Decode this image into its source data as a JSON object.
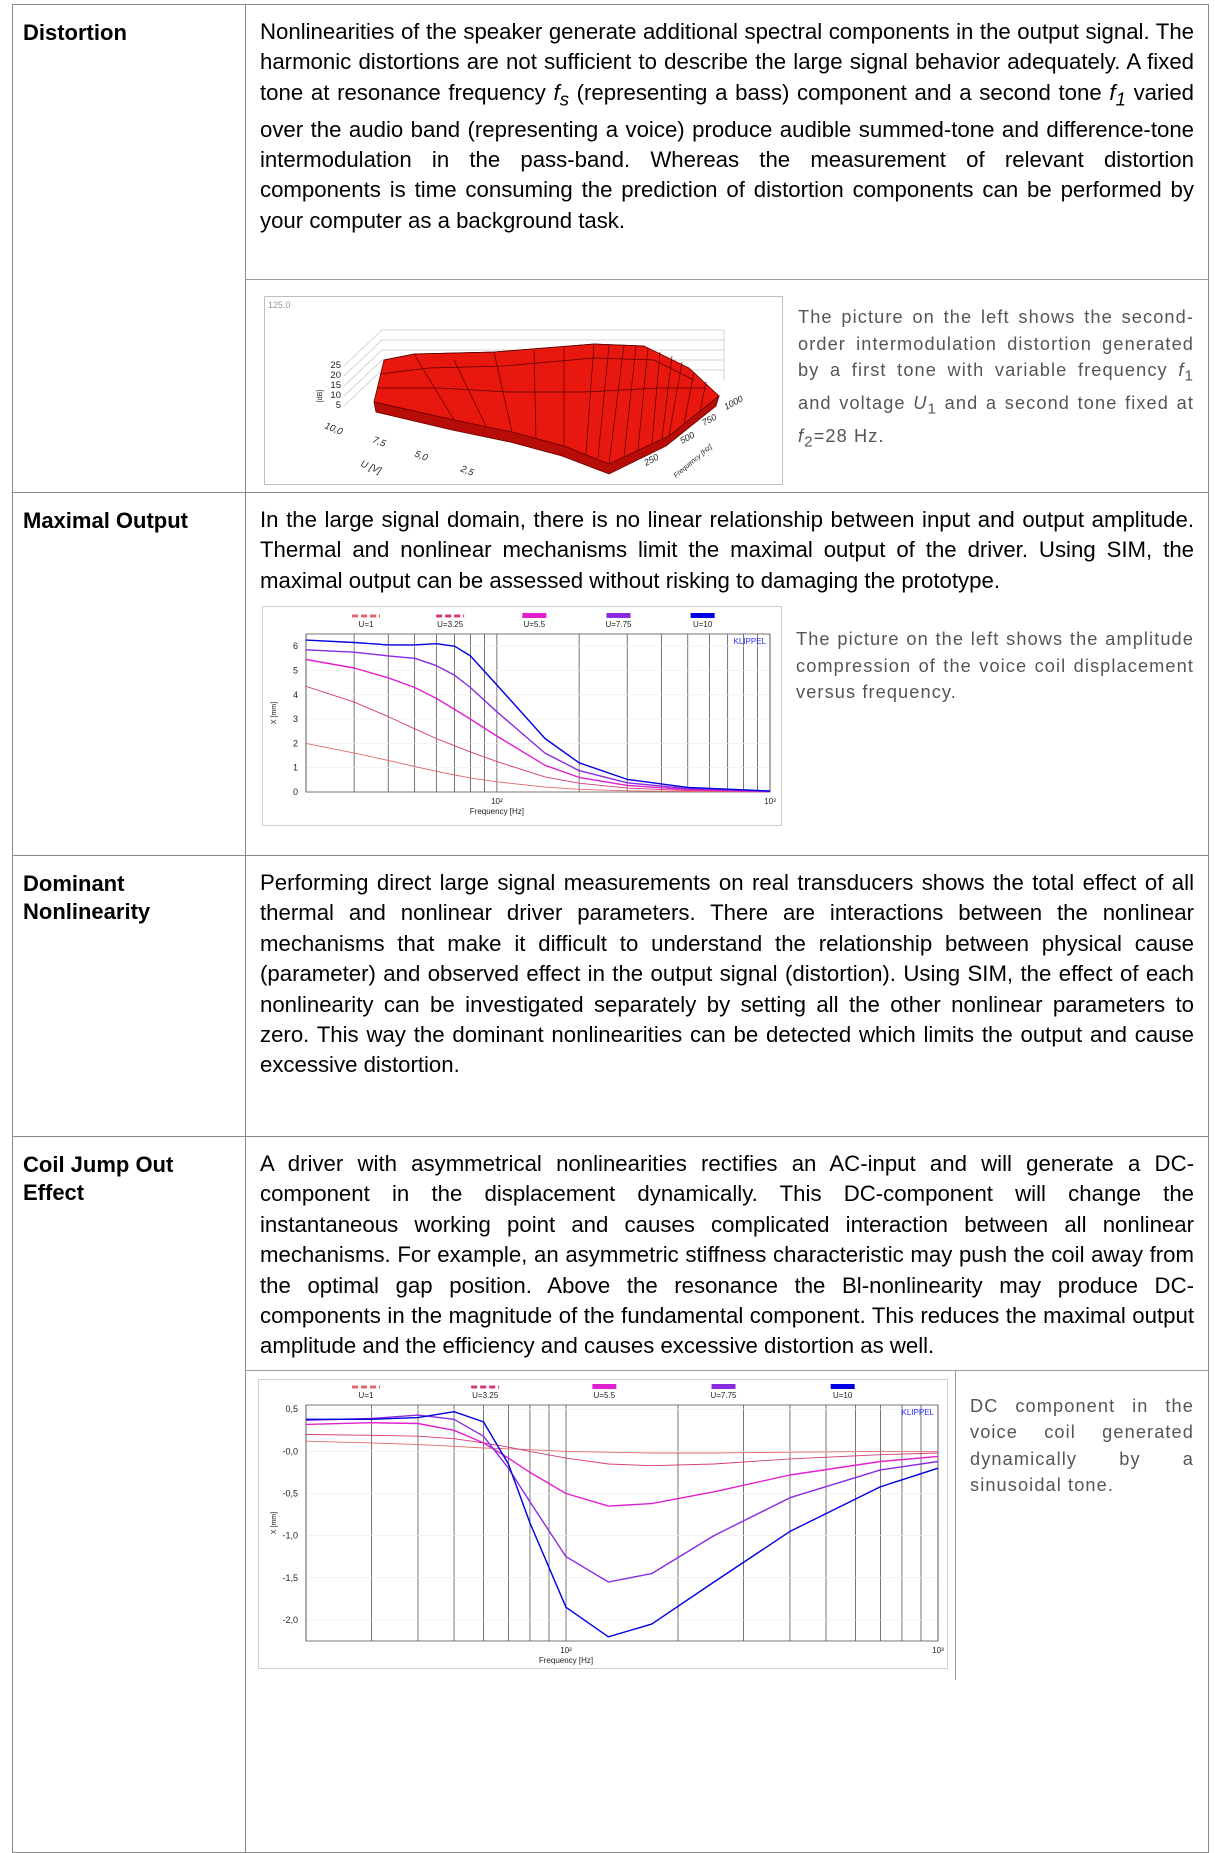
{
  "rows": [
    {
      "label": "Distortion",
      "text_parts": {
        "a": "Nonlinearities of the speaker generate additional spectral components in the output signal. The harmonic distortions are not sufficient to describe the large signal behavior adequately. A fixed tone at resonance frequency ",
        "fs_italic": "f",
        "fs_sub": "s",
        "b": " (representing a bass) component and a second tone ",
        "f1_italic": "f",
        "f1_sub": "1",
        "c": " varied over the audio band (representing a voice) produce audible summed-tone and difference-tone intermodulation in the pass-band. Whereas the measurement of relevant distortion components is time consuming the prediction of distortion components can be performed by your computer as a background task."
      },
      "caption_parts": {
        "a": "The picture on the left shows the second-order intermodulation distortion generated by a first tone with variable frequency ",
        "f1": "f",
        "f1_sub": "1",
        "b": " and voltage ",
        "u1": "U",
        "u1_sub": "1",
        "c": " and a second tone fixed at ",
        "f2": "f",
        "f2_sub": "2",
        "d": "=28 Hz."
      },
      "figure": {
        "corner_label": "125.0",
        "z_ticks": [
          "25",
          "20",
          "15",
          "10",
          "5"
        ],
        "z_axis_label": "[dB]",
        "u_ticks": [
          "10,0",
          "7,5",
          "5,0",
          "2,5"
        ],
        "u_axis_label": "U [V]",
        "f_ticks": [
          "1000",
          "750",
          "500",
          "250"
        ],
        "f_axis_label": "Frequency [Hz]"
      }
    },
    {
      "label": "Maximal Output",
      "text": "In the large signal domain, there is no linear relationship between input and output amplitude. Thermal and nonlinear mechanisms limit the maximal output of the driver. Using SIM, the maximal output can be assessed without risking to damaging the prototype.",
      "caption": "The picture on the left shows the amplitude compression of the voice coil displacement versus frequency."
    },
    {
      "label": "Dominant Nonlinearity",
      "text": "Performing direct large signal measurements on real transducers shows the total effect of all thermal and nonlinear driver parameters. There are interactions between the nonlinear mechanisms that make it difficult to understand the relationship between physical cause (parameter) and observed effect in the output signal (distortion). Using SIM, the effect of each nonlinearity can be investigated separately by setting all the other nonlinear parameters to zero. This way the dominant nonlinearities can be detected which limits the output and cause excessive distortion."
    },
    {
      "label": "Coil Jump Out Effect",
      "text": "A driver with asymmetrical nonlinearities rectifies an AC-input and will generate a DC-component in the displacement dynamically. This DC-component will change the instantaneous working point and causes complicated interaction between all nonlinear mechanisms. For example, an asymmetric stiffness characteristic may push the coil away from the optimal gap position. Above the resonance the Bl-nonlinearity may produce DC-components in the magnitude of the fundamental component. This reduces the maximal output amplitude and the efficiency and causes excessive distortion as well.",
      "caption": "DC component in the voice coil generated dynamically by a sinusoidal tone."
    }
  ],
  "chart_data": [
    {
      "type": "line",
      "title": "",
      "xlabel": "Frequency [Hz]",
      "ylabel": "X [mm]",
      "x_scale": "log",
      "xlim": [
        20,
        1000
      ],
      "ylim": [
        0,
        6.5
      ],
      "x_tick_labels": [
        "10²",
        "10³"
      ],
      "y_tick_labels": [
        "0",
        "1",
        "2",
        "3",
        "4",
        "5",
        "6"
      ],
      "watermark": "KLIPPEL",
      "legend_position": "top",
      "x": [
        20,
        30,
        40,
        50,
        60,
        70,
        80,
        100,
        150,
        200,
        300,
        500,
        1000
      ],
      "series": [
        {
          "name": "U=1",
          "color": "#e06a6a",
          "style": "dashed",
          "values": [
            2.0,
            1.6,
            1.3,
            1.05,
            0.85,
            0.7,
            0.58,
            0.42,
            0.2,
            0.11,
            0.05,
            0.02,
            0.0
          ]
        },
        {
          "name": "U=3.25",
          "color": "#d4387a",
          "style": "dashed",
          "values": [
            4.35,
            3.7,
            3.1,
            2.6,
            2.2,
            1.9,
            1.65,
            1.25,
            0.62,
            0.36,
            0.16,
            0.06,
            0.01
          ]
        },
        {
          "name": "U=5.5",
          "color": "#e020d0",
          "style": "solid",
          "values": [
            5.45,
            5.1,
            4.7,
            4.3,
            3.85,
            3.4,
            3.0,
            2.3,
            1.1,
            0.6,
            0.27,
            0.1,
            0.02
          ]
        },
        {
          "name": "U=7.75",
          "color": "#8a2be2",
          "style": "solid",
          "values": [
            5.85,
            5.75,
            5.6,
            5.5,
            5.2,
            4.8,
            4.3,
            3.3,
            1.6,
            0.88,
            0.38,
            0.14,
            0.03
          ]
        },
        {
          "name": "U=10",
          "color": "#0000e0",
          "style": "solid",
          "values": [
            6.25,
            6.15,
            6.05,
            6.05,
            6.1,
            6.0,
            5.6,
            4.4,
            2.2,
            1.2,
            0.52,
            0.19,
            0.04
          ]
        }
      ]
    },
    {
      "type": "line",
      "title": "",
      "xlabel": "Frequency [Hz]",
      "ylabel": "X [mm]",
      "x_scale": "log",
      "xlim": [
        20,
        1000
      ],
      "ylim": [
        -2.25,
        0.55
      ],
      "x_tick_labels": [
        "10²",
        "10³"
      ],
      "y_tick_labels": [
        "0,5",
        "-0,0",
        "-0,5",
        "-1,0",
        "-1,5",
        "-2,0"
      ],
      "watermark": "KLIPPEL",
      "legend_position": "top",
      "x": [
        20,
        30,
        40,
        50,
        60,
        70,
        80,
        100,
        130,
        170,
        250,
        400,
        700,
        1000
      ],
      "series": [
        {
          "name": "U=1",
          "color": "#e06a6a",
          "style": "dashed",
          "values": [
            0.12,
            0.1,
            0.08,
            0.06,
            0.04,
            0.03,
            0.02,
            0.0,
            -0.01,
            -0.02,
            -0.02,
            -0.01,
            0.0,
            0.0
          ]
        },
        {
          "name": "U=3.25",
          "color": "#d4387a",
          "style": "dashed",
          "values": [
            0.2,
            0.19,
            0.18,
            0.15,
            0.1,
            0.05,
            0.0,
            -0.08,
            -0.15,
            -0.17,
            -0.15,
            -0.09,
            -0.04,
            -0.02
          ]
        },
        {
          "name": "U=5.5",
          "color": "#e020d0",
          "style": "solid",
          "values": [
            0.32,
            0.34,
            0.33,
            0.25,
            0.1,
            -0.08,
            -0.25,
            -0.5,
            -0.65,
            -0.62,
            -0.48,
            -0.28,
            -0.12,
            -0.06
          ]
        },
        {
          "name": "U=7.75",
          "color": "#8a2be2",
          "style": "solid",
          "values": [
            0.37,
            0.39,
            0.43,
            0.38,
            0.18,
            -0.2,
            -0.6,
            -1.25,
            -1.55,
            -1.45,
            -1.0,
            -0.55,
            -0.22,
            -0.12
          ]
        },
        {
          "name": "U=10",
          "color": "#0000e0",
          "style": "solid",
          "values": [
            0.38,
            0.38,
            0.4,
            0.47,
            0.35,
            -0.15,
            -0.85,
            -1.85,
            -2.2,
            -2.05,
            -1.55,
            -0.95,
            -0.42,
            -0.2
          ]
        }
      ]
    }
  ]
}
